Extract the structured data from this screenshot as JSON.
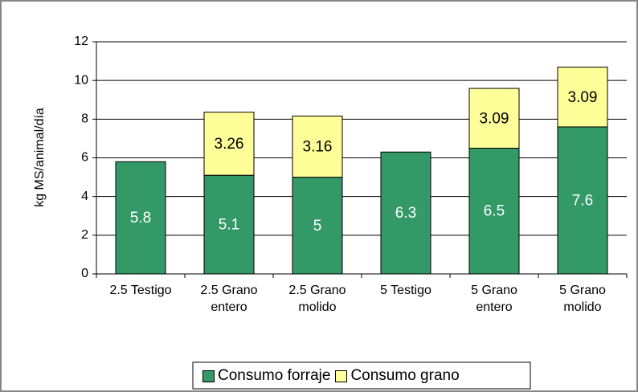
{
  "chart_data": {
    "type": "stacked_bar",
    "y_label": "kg MS/animal/día",
    "categories": [
      "2.5 Testigo",
      "2.5 Grano entero",
      "2.5 Grano molido",
      "5 Testigo",
      "5 Grano entero",
      "5 Grano molido"
    ],
    "series": [
      {
        "name": "Consumo forraje",
        "color": "#339966",
        "label_color": "#ffffff",
        "values": [
          5.8,
          5.1,
          5,
          6.3,
          6.5,
          7.6
        ]
      },
      {
        "name": "Consumo grano",
        "color": "#ffff99",
        "label_color": "#000000",
        "values": [
          null,
          3.26,
          3.16,
          null,
          3.09,
          3.09
        ]
      }
    ],
    "ylim": [
      0,
      12
    ],
    "yticks": [
      0,
      2,
      4,
      6,
      8,
      10,
      12
    ],
    "grid": true,
    "legend": "bottom"
  }
}
